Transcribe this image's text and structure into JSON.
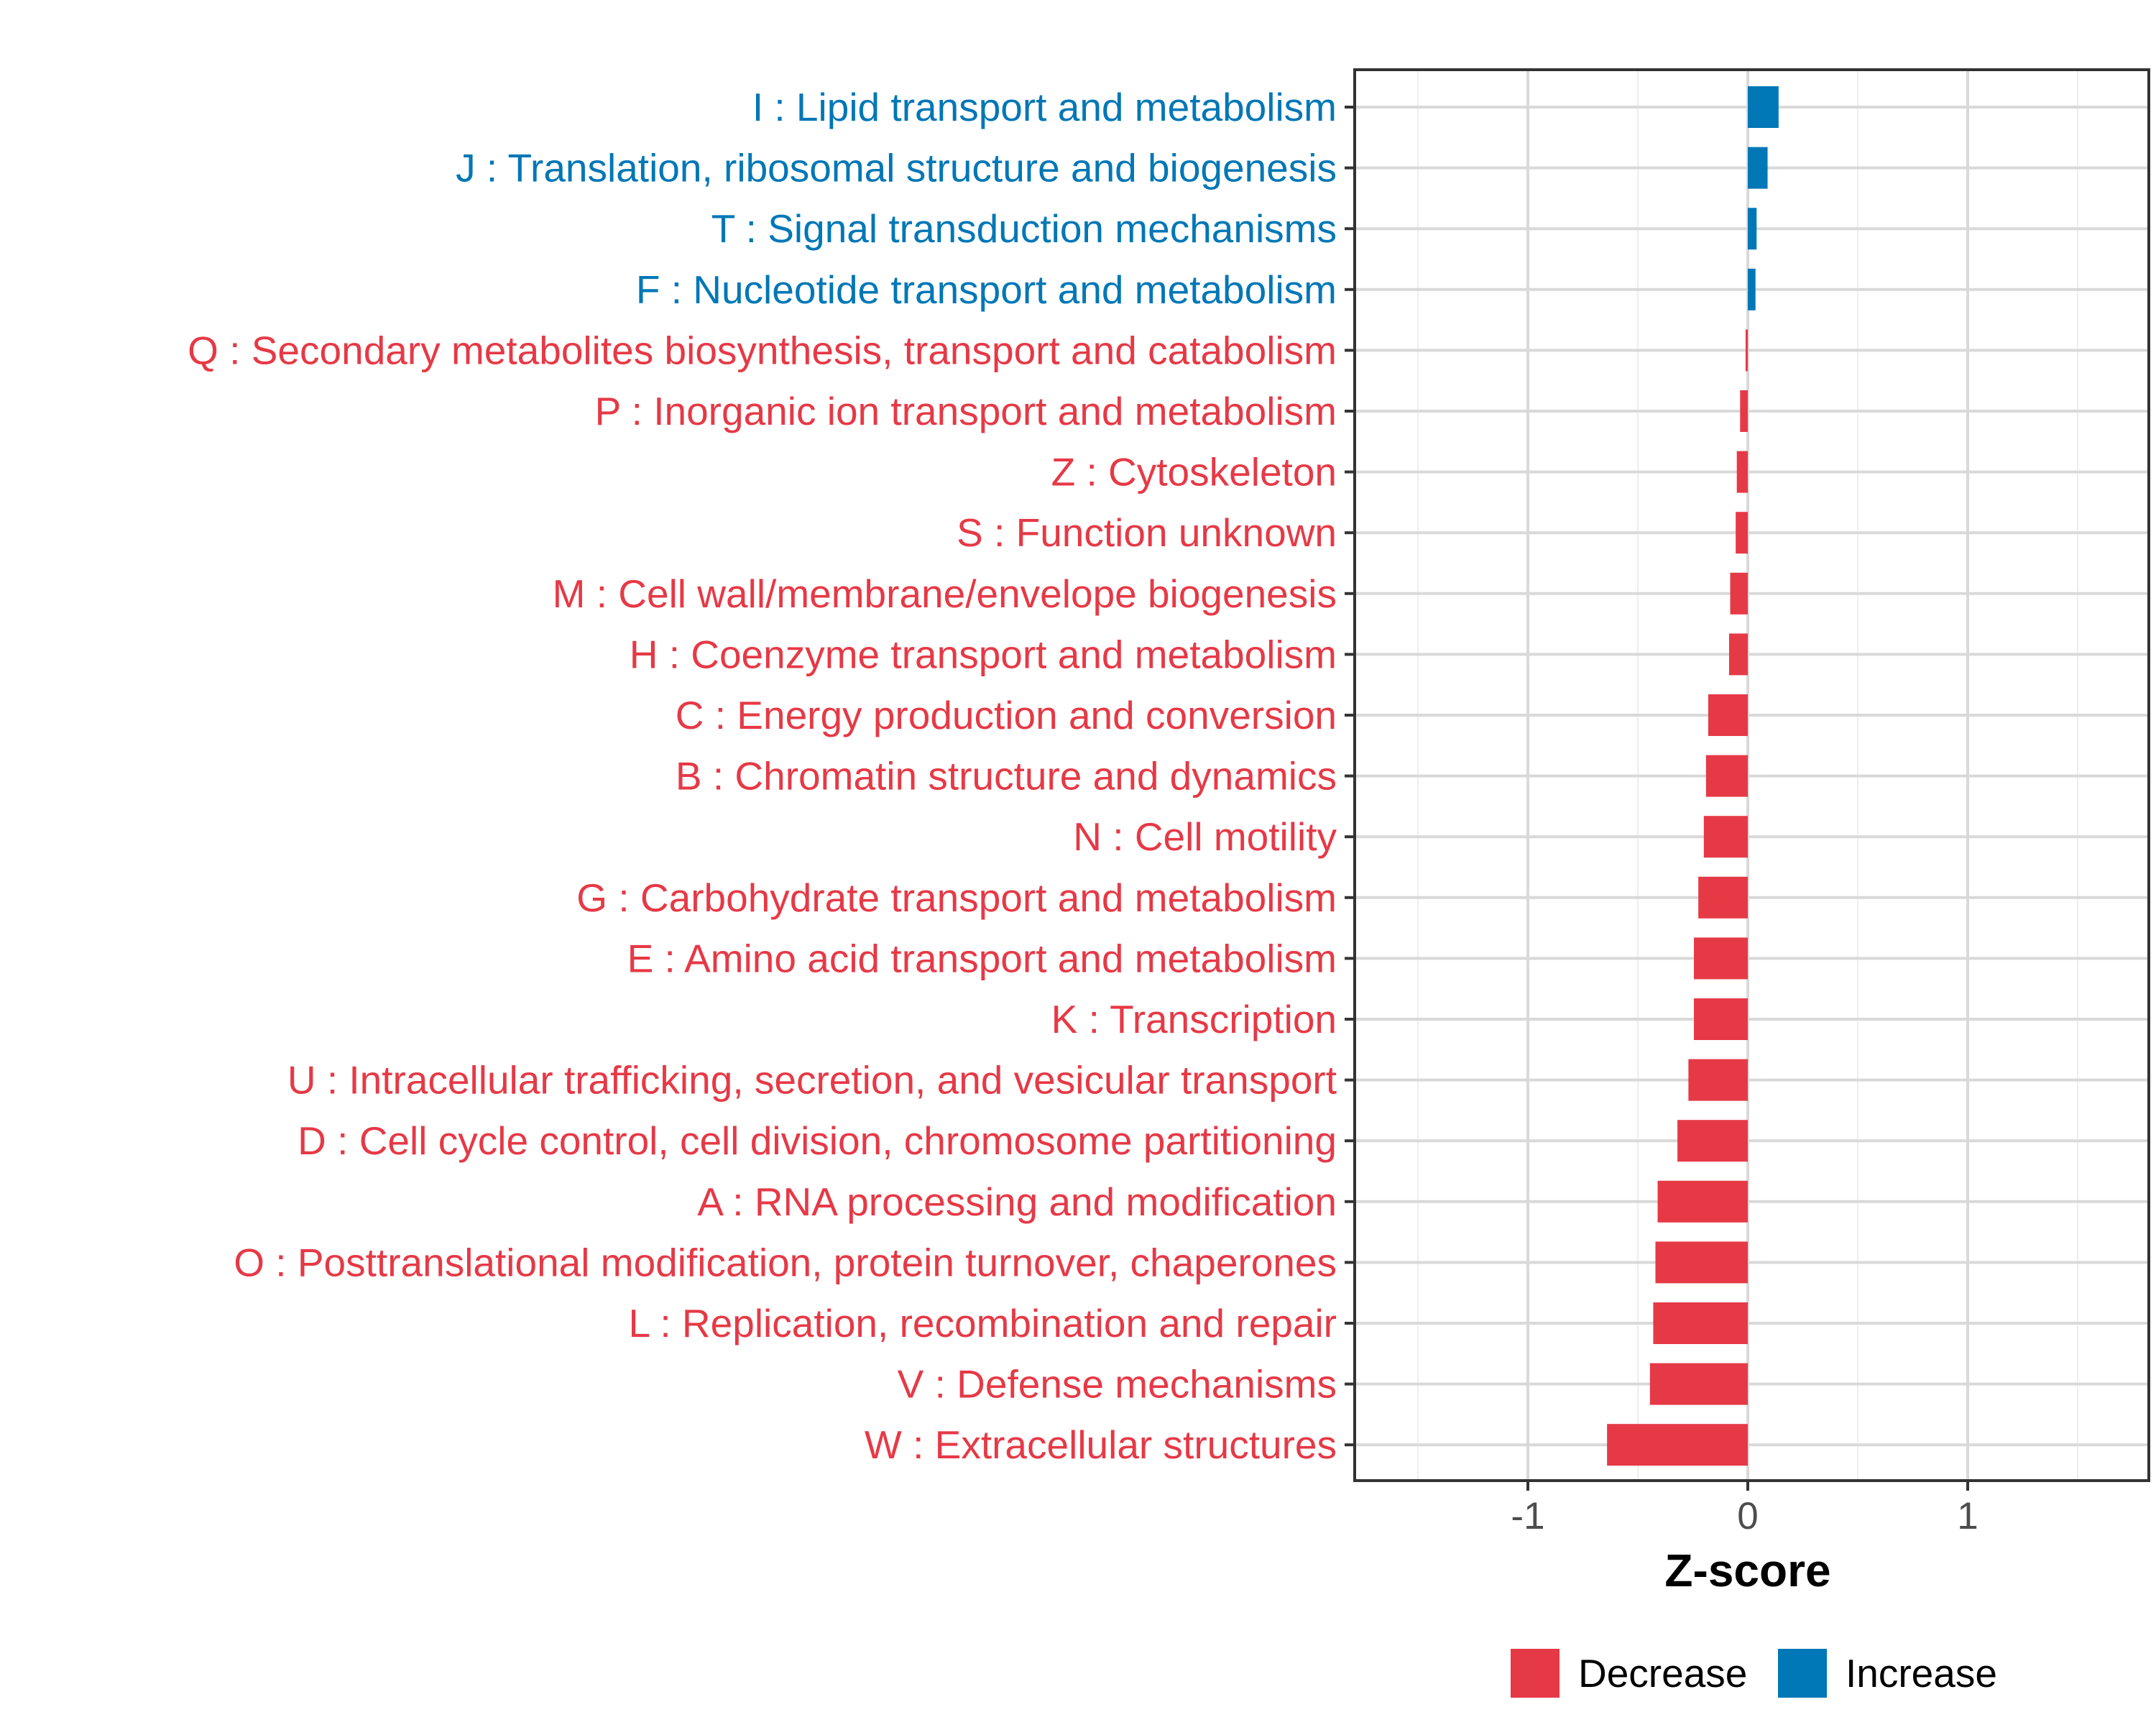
{
  "colors": {
    "decrease": "#E63946",
    "increase": "#0077B6",
    "grid": "#d9d9d9",
    "axis": "#333333"
  },
  "chart_data": {
    "type": "bar",
    "orientation": "horizontal",
    "xlabel": "Z-score",
    "xlim": [
      -1.8,
      1.8
    ],
    "xticks": [
      -1,
      0,
      1
    ],
    "xtick_labels": [
      "-1",
      "0",
      "1"
    ],
    "grid": true,
    "legend_position": "bottom",
    "legend": [
      {
        "label": "Decrease",
        "color": "#E63946"
      },
      {
        "label": "Increase",
        "color": "#0077B6"
      }
    ],
    "categories": [
      "I : Lipid transport and metabolism",
      "J : Translation, ribosomal structure and biogenesis",
      "T : Signal transduction mechanisms",
      "F : Nucleotide transport and metabolism",
      "Q : Secondary metabolites biosynthesis, transport and catabolism",
      "P : Inorganic ion transport and metabolism",
      "Z : Cytoskeleton",
      "S : Function unknown",
      "M : Cell wall/membrane/envelope biogenesis",
      "H : Coenzyme transport and metabolism",
      "C : Energy production and conversion",
      "B : Chromatin structure and dynamics",
      "N : Cell motility",
      "G : Carbohydrate transport and metabolism",
      "E : Amino acid transport and metabolism",
      "K : Transcription",
      "U : Intracellular trafficking, secretion, and vesicular transport",
      "D : Cell cycle control, cell division, chromosome partitioning",
      "A : RNA processing and modification",
      "O : Posttranslational modification, protein turnover, chaperones",
      "L : Replication, recombination and repair",
      "V : Defense mechanisms",
      "W : Extracellular structures"
    ],
    "values": [
      0.14,
      0.09,
      0.04,
      0.035,
      -0.01,
      -0.035,
      -0.05,
      -0.055,
      -0.08,
      -0.085,
      -0.18,
      -0.19,
      -0.2,
      -0.225,
      -0.245,
      -0.245,
      -0.27,
      -0.32,
      -0.41,
      -0.42,
      -0.43,
      -0.445,
      -0.64
    ],
    "direction": [
      "Increase",
      "Increase",
      "Increase",
      "Increase",
      "Decrease",
      "Decrease",
      "Decrease",
      "Decrease",
      "Decrease",
      "Decrease",
      "Decrease",
      "Decrease",
      "Decrease",
      "Decrease",
      "Decrease",
      "Decrease",
      "Decrease",
      "Decrease",
      "Decrease",
      "Decrease",
      "Decrease",
      "Decrease",
      "Decrease"
    ]
  }
}
